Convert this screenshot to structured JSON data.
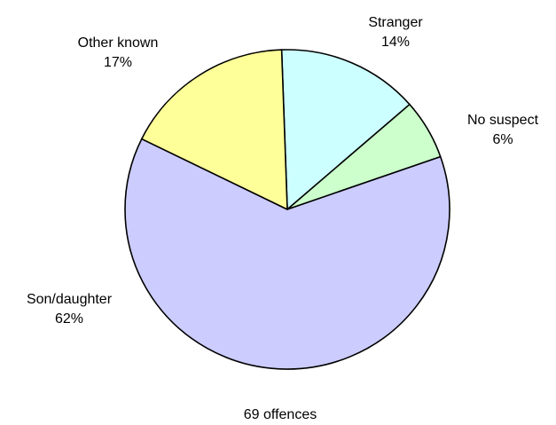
{
  "chart_data": {
    "type": "pie",
    "title": "",
    "caption": "69 offences",
    "slices": [
      {
        "label": "Stranger",
        "percent_label": "14%",
        "value": 14,
        "color": "#ccffff"
      },
      {
        "label": "No suspect",
        "percent_label": "6%",
        "value": 6,
        "color": "#ccffcc"
      },
      {
        "label": "Son/daughter",
        "percent_label": "62%",
        "value": 62,
        "color": "#ccccff"
      },
      {
        "label": "Other known",
        "percent_label": "17%",
        "value": 17,
        "color": "#ffff99"
      }
    ]
  }
}
